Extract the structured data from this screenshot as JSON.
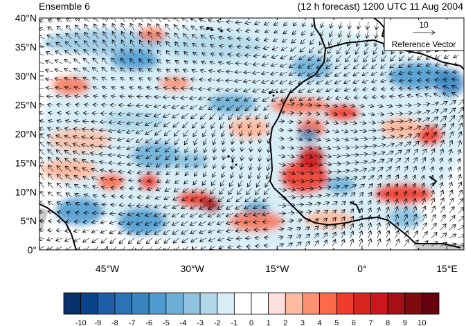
{
  "header": {
    "left_title": "Ensemble 6",
    "right_title": "(12 h forecast) 1200 UTC 11 Aug 2004"
  },
  "map": {
    "lat_labels": [
      "40°N",
      "35°N",
      "30°N",
      "25°N",
      "20°N",
      "15°N",
      "10°N",
      "5°N",
      "0°"
    ],
    "lon_labels": [
      "45°W",
      "30°W",
      "15°W",
      "0°",
      "15°E"
    ],
    "lat_range": [
      0,
      40
    ],
    "lon_range": [
      -57,
      18
    ],
    "land_color": "#cccccc"
  },
  "reference_vector": {
    "value": "10",
    "label": "Reference Vector"
  },
  "colorbar": {
    "labels": [
      "-10",
      "-9",
      "-8",
      "-7",
      "-6",
      "-5",
      "-4",
      "-3",
      "-2",
      "-1",
      "0",
      "1",
      "2",
      "3",
      "4",
      "5",
      "6",
      "7",
      "8",
      "9",
      "10"
    ],
    "colors": [
      "#08306b",
      "#08448c",
      "#1f5ea8",
      "#2b72b6",
      "#3a85c1",
      "#4f9bcf",
      "#6bafd6",
      "#8fc3e0",
      "#b2d9ea",
      "#d8eef7",
      "#ffffff",
      "#ffffff",
      "#fde0dd",
      "#fcbba1",
      "#fc9272",
      "#fb6a4a",
      "#ef3b2c",
      "#d7261e",
      "#cb181d",
      "#a50f15",
      "#7f0a0f",
      "#67000d"
    ]
  }
}
